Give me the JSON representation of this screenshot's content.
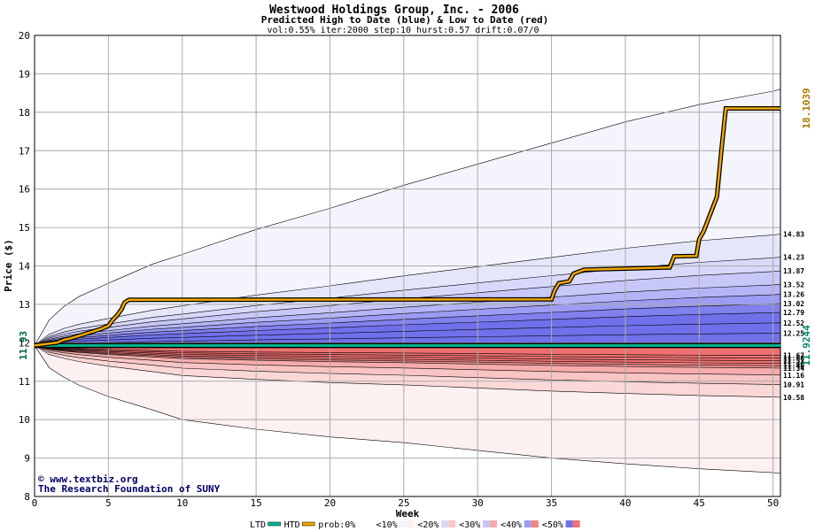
{
  "chart_data": {
    "type": "area",
    "title": "Westwood Holdings Group, Inc. - 2006",
    "subtitle": "Predicted High to Date (blue) &  Low to Date (red)",
    "params": "vol:0.55% iter:2000 step:10 hurst:0.57 drift:0.07/0",
    "xlabel": "Week",
    "ylabel": "Price ($)",
    "xlim": [
      0,
      50.5
    ],
    "ylim": [
      8,
      20
    ],
    "x_ticks": [
      0,
      5,
      10,
      15,
      20,
      25,
      30,
      35,
      40,
      45,
      50
    ],
    "y_ticks": [
      8,
      9,
      10,
      11,
      12,
      13,
      14,
      15,
      16,
      17,
      18,
      19,
      20
    ],
    "grid": true,
    "start_price": 11.93,
    "start_label": "11.93",
    "high_bands": {
      "x": [
        0,
        1,
        2,
        3,
        5,
        8,
        10,
        15,
        20,
        25,
        30,
        35,
        40,
        45,
        50,
        50.5
      ],
      "outer": [
        11.93,
        12.6,
        12.95,
        13.2,
        13.55,
        14.05,
        14.3,
        14.95,
        15.5,
        16.1,
        16.65,
        17.2,
        17.75,
        18.2,
        18.55,
        18.6
      ],
      "levels": [
        {
          "prob": "0%",
          "end": 14.83,
          "label": "14.83"
        },
        {
          "prob": "10%",
          "end": 14.23,
          "label": "14.23"
        },
        {
          "prob": "20%",
          "end": 13.87,
          "label": "13.87"
        },
        {
          "prob": "30%",
          "end": 13.52,
          "label": "13.52"
        },
        {
          "prob": "40%",
          "end": 13.26,
          "label": "13.26"
        },
        {
          "prob": "50%",
          "end": 13.02,
          "label": "13.02"
        },
        {
          "prob": "",
          "end": 12.79,
          "label": "12.79"
        },
        {
          "prob": "",
          "end": 12.52,
          "label": "12.52"
        },
        {
          "prob": "",
          "end": 12.25,
          "label": "12.25"
        }
      ]
    },
    "low_bands": {
      "x": [
        0,
        1,
        2,
        3,
        5,
        8,
        10,
        15,
        20,
        25,
        30,
        35,
        40,
        45,
        50,
        50.5
      ],
      "outer": [
        11.93,
        11.35,
        11.1,
        10.9,
        10.6,
        10.25,
        10.0,
        9.75,
        9.55,
        9.4,
        9.2,
        9.0,
        8.85,
        8.72,
        8.62,
        8.6
      ],
      "levels": [
        {
          "end": 11.67,
          "label": "11.67"
        },
        {
          "end": 11.6,
          "label": "11.60"
        },
        {
          "end": 11.53,
          "label": "11.53"
        },
        {
          "end": 11.46,
          "label": "11.46"
        },
        {
          "end": 11.4,
          "label": "11.40"
        },
        {
          "end": 11.34,
          "label": "11.34"
        },
        {
          "end": 11.16,
          "label": "11.16"
        },
        {
          "end": 10.91,
          "label": "10.91"
        },
        {
          "end": 10.58,
          "label": "10.58"
        }
      ]
    },
    "series": [
      {
        "name": "HTD",
        "color": "#f0a800",
        "x": [
          0,
          1,
          1.5,
          2,
          2.5,
          3,
          3.5,
          4,
          4.5,
          5,
          5.3,
          5.6,
          5.9,
          6.1,
          6.4,
          35,
          35.2,
          35.5,
          36.2,
          36.5,
          37.2,
          43,
          43.3,
          44.8,
          45.0,
          45.3,
          45.8,
          46.2,
          46.5,
          46.8,
          50.5
        ],
        "values": [
          11.93,
          11.98,
          12.0,
          12.08,
          12.12,
          12.18,
          12.24,
          12.3,
          12.36,
          12.44,
          12.6,
          12.72,
          12.88,
          13.05,
          13.12,
          13.13,
          13.35,
          13.55,
          13.6,
          13.8,
          13.9,
          13.96,
          14.25,
          14.26,
          14.7,
          14.9,
          15.4,
          15.8,
          17.0,
          18.1,
          18.1
        ]
      },
      {
        "name": "LTD",
        "color": "#00b890",
        "x": [
          0,
          50.5
        ],
        "values": [
          11.93,
          11.93
        ]
      }
    ],
    "right_labels": {
      "high_value": "18.1039",
      "high_color": "#b07800",
      "low_value": "11.9244",
      "low_color": "#008866"
    },
    "colors": {
      "high_fill": [
        "#f4f4fc",
        "#e6e6fb",
        "#d8d8fa",
        "#c8c8f8",
        "#b4b4f6",
        "#9c9cf4",
        "#8080ee",
        "#7070ea"
      ],
      "low_fill": [
        "#fdf0f0",
        "#fbd8d8",
        "#f9c4c4",
        "#f7acac",
        "#f49494",
        "#f28282",
        "#ef7070"
      ],
      "grid": "#aaaaaa",
      "title": "#000000",
      "watermark": "#000066"
    },
    "legend": {
      "items": [
        "LTD",
        "HTD",
        "prob:0%",
        "<10%",
        "<20%",
        "<30%",
        "<40%",
        "<50%"
      ],
      "placement": "bottom"
    },
    "credits": {
      "line1": "www.textbiz.org",
      "line2": "The Research Foundation of SUNY"
    }
  }
}
